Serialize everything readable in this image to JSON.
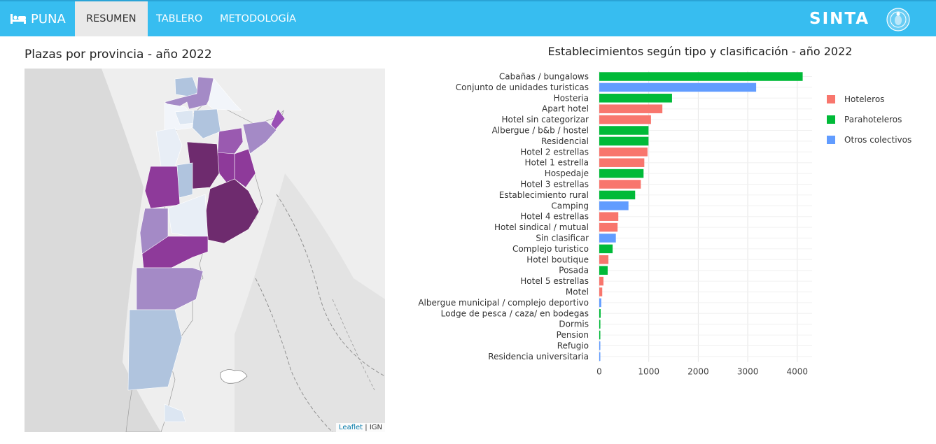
{
  "navbar": {
    "brand": "PUNA",
    "brand_icon": "bed-icon",
    "tabs": [
      {
        "label": "RESUMEN",
        "active": true
      },
      {
        "label": "TABLERO",
        "active": false
      },
      {
        "label": "METODOLOGÍA",
        "active": false
      }
    ],
    "logo_text": "SINTA",
    "background": "#37bdf0"
  },
  "map": {
    "title": "Plazas por provincia - año 2022",
    "attribution_link": "Leaflet",
    "attribution_separator": " | ",
    "attribution_source": "IGN",
    "color_scale": [
      "#f2f5fa",
      "#dce6f2",
      "#b0c4de",
      "#a48ac6",
      "#9a4fb5",
      "#8e3a9a",
      "#6e2b6e"
    ]
  },
  "chart_data": {
    "type": "bar",
    "orientation": "horizontal",
    "title": "Establecimientos según tipo y clasificación - año 2022",
    "categories": [
      "Cabañas / bungalows",
      "Conjunto de unidades turisticas",
      "Hosteria",
      "Apart hotel",
      "Hotel sin categorizar",
      "Albergue / b&b / hostel",
      "Residencial",
      "Hotel 2 estrellas",
      "Hotel 1 estrella",
      "Hospedaje",
      "Hotel 3 estrellas",
      "Establecimiento rural",
      "Camping",
      "Hotel 4 estrellas",
      "Hotel sindical / mutual",
      "Sin clasificar",
      "Complejo turistico",
      "Hotel boutique",
      "Posada",
      "Hotel 5 estrellas",
      "Motel",
      "Albergue municipal / complejo deportivo",
      "Lodge de pesca / caza/ en bodegas",
      "Dormis",
      "Pension",
      "Refugio",
      "Residencia universitaria"
    ],
    "values": [
      4110,
      3170,
      1470,
      1275,
      1045,
      995,
      995,
      975,
      910,
      895,
      840,
      725,
      590,
      385,
      370,
      335,
      270,
      185,
      170,
      85,
      60,
      40,
      28,
      22,
      20,
      15,
      5
    ],
    "groups": [
      "Parahoteleros",
      "Otros colectivos",
      "Parahoteleros",
      "Hoteleros",
      "Hoteleros",
      "Parahoteleros",
      "Parahoteleros",
      "Hoteleros",
      "Hoteleros",
      "Parahoteleros",
      "Hoteleros",
      "Parahoteleros",
      "Otros colectivos",
      "Hoteleros",
      "Hoteleros",
      "Otros colectivos",
      "Parahoteleros",
      "Hoteleros",
      "Parahoteleros",
      "Hoteleros",
      "Hoteleros",
      "Otros colectivos",
      "Parahoteleros",
      "Parahoteleros",
      "Parahoteleros",
      "Otros colectivos",
      "Otros colectivos"
    ],
    "legend": [
      {
        "name": "Hoteleros",
        "color": "#f8766d"
      },
      {
        "name": "Parahoteleros",
        "color": "#00ba38"
      },
      {
        "name": "Otros colectivos",
        "color": "#619cff"
      }
    ],
    "x_ticks": [
      0,
      1000,
      2000,
      3000,
      4000
    ],
    "xlim": [
      0,
      4300
    ],
    "grid": true,
    "legend_position": "right"
  }
}
